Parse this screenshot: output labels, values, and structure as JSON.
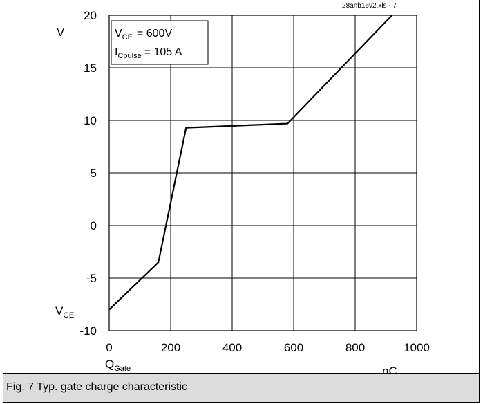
{
  "caption": "Fig. 7 Typ. gate charge characteristic",
  "chart_data": {
    "type": "line",
    "x_label_main": "Q",
    "x_label_sub": "Gate",
    "x_unit": "nC",
    "y_label_main": "V",
    "y_label_sub": "GE",
    "y_unit": "V",
    "xlim": [
      0,
      1000
    ],
    "ylim": [
      -10,
      20
    ],
    "x_ticks": [
      "0",
      "200",
      "400",
      "600",
      "800",
      "1000"
    ],
    "y_ticks": [
      "-10",
      "-5",
      "0",
      "5",
      "10",
      "15",
      "20"
    ],
    "grid": true,
    "file_id": "28anb16v2.xls - 7",
    "legend": {
      "line1_main": "V",
      "line1_sub": "CE",
      "line1_value": "= 600V",
      "line2_main": "I",
      "line2_sub": "Cpulse",
      "line2_value": "= 105 A"
    },
    "series": [
      {
        "x": [
          0,
          160,
          250,
          580,
          920
        ],
        "y": [
          -8,
          -3.5,
          9.3,
          9.7,
          20
        ]
      }
    ]
  }
}
